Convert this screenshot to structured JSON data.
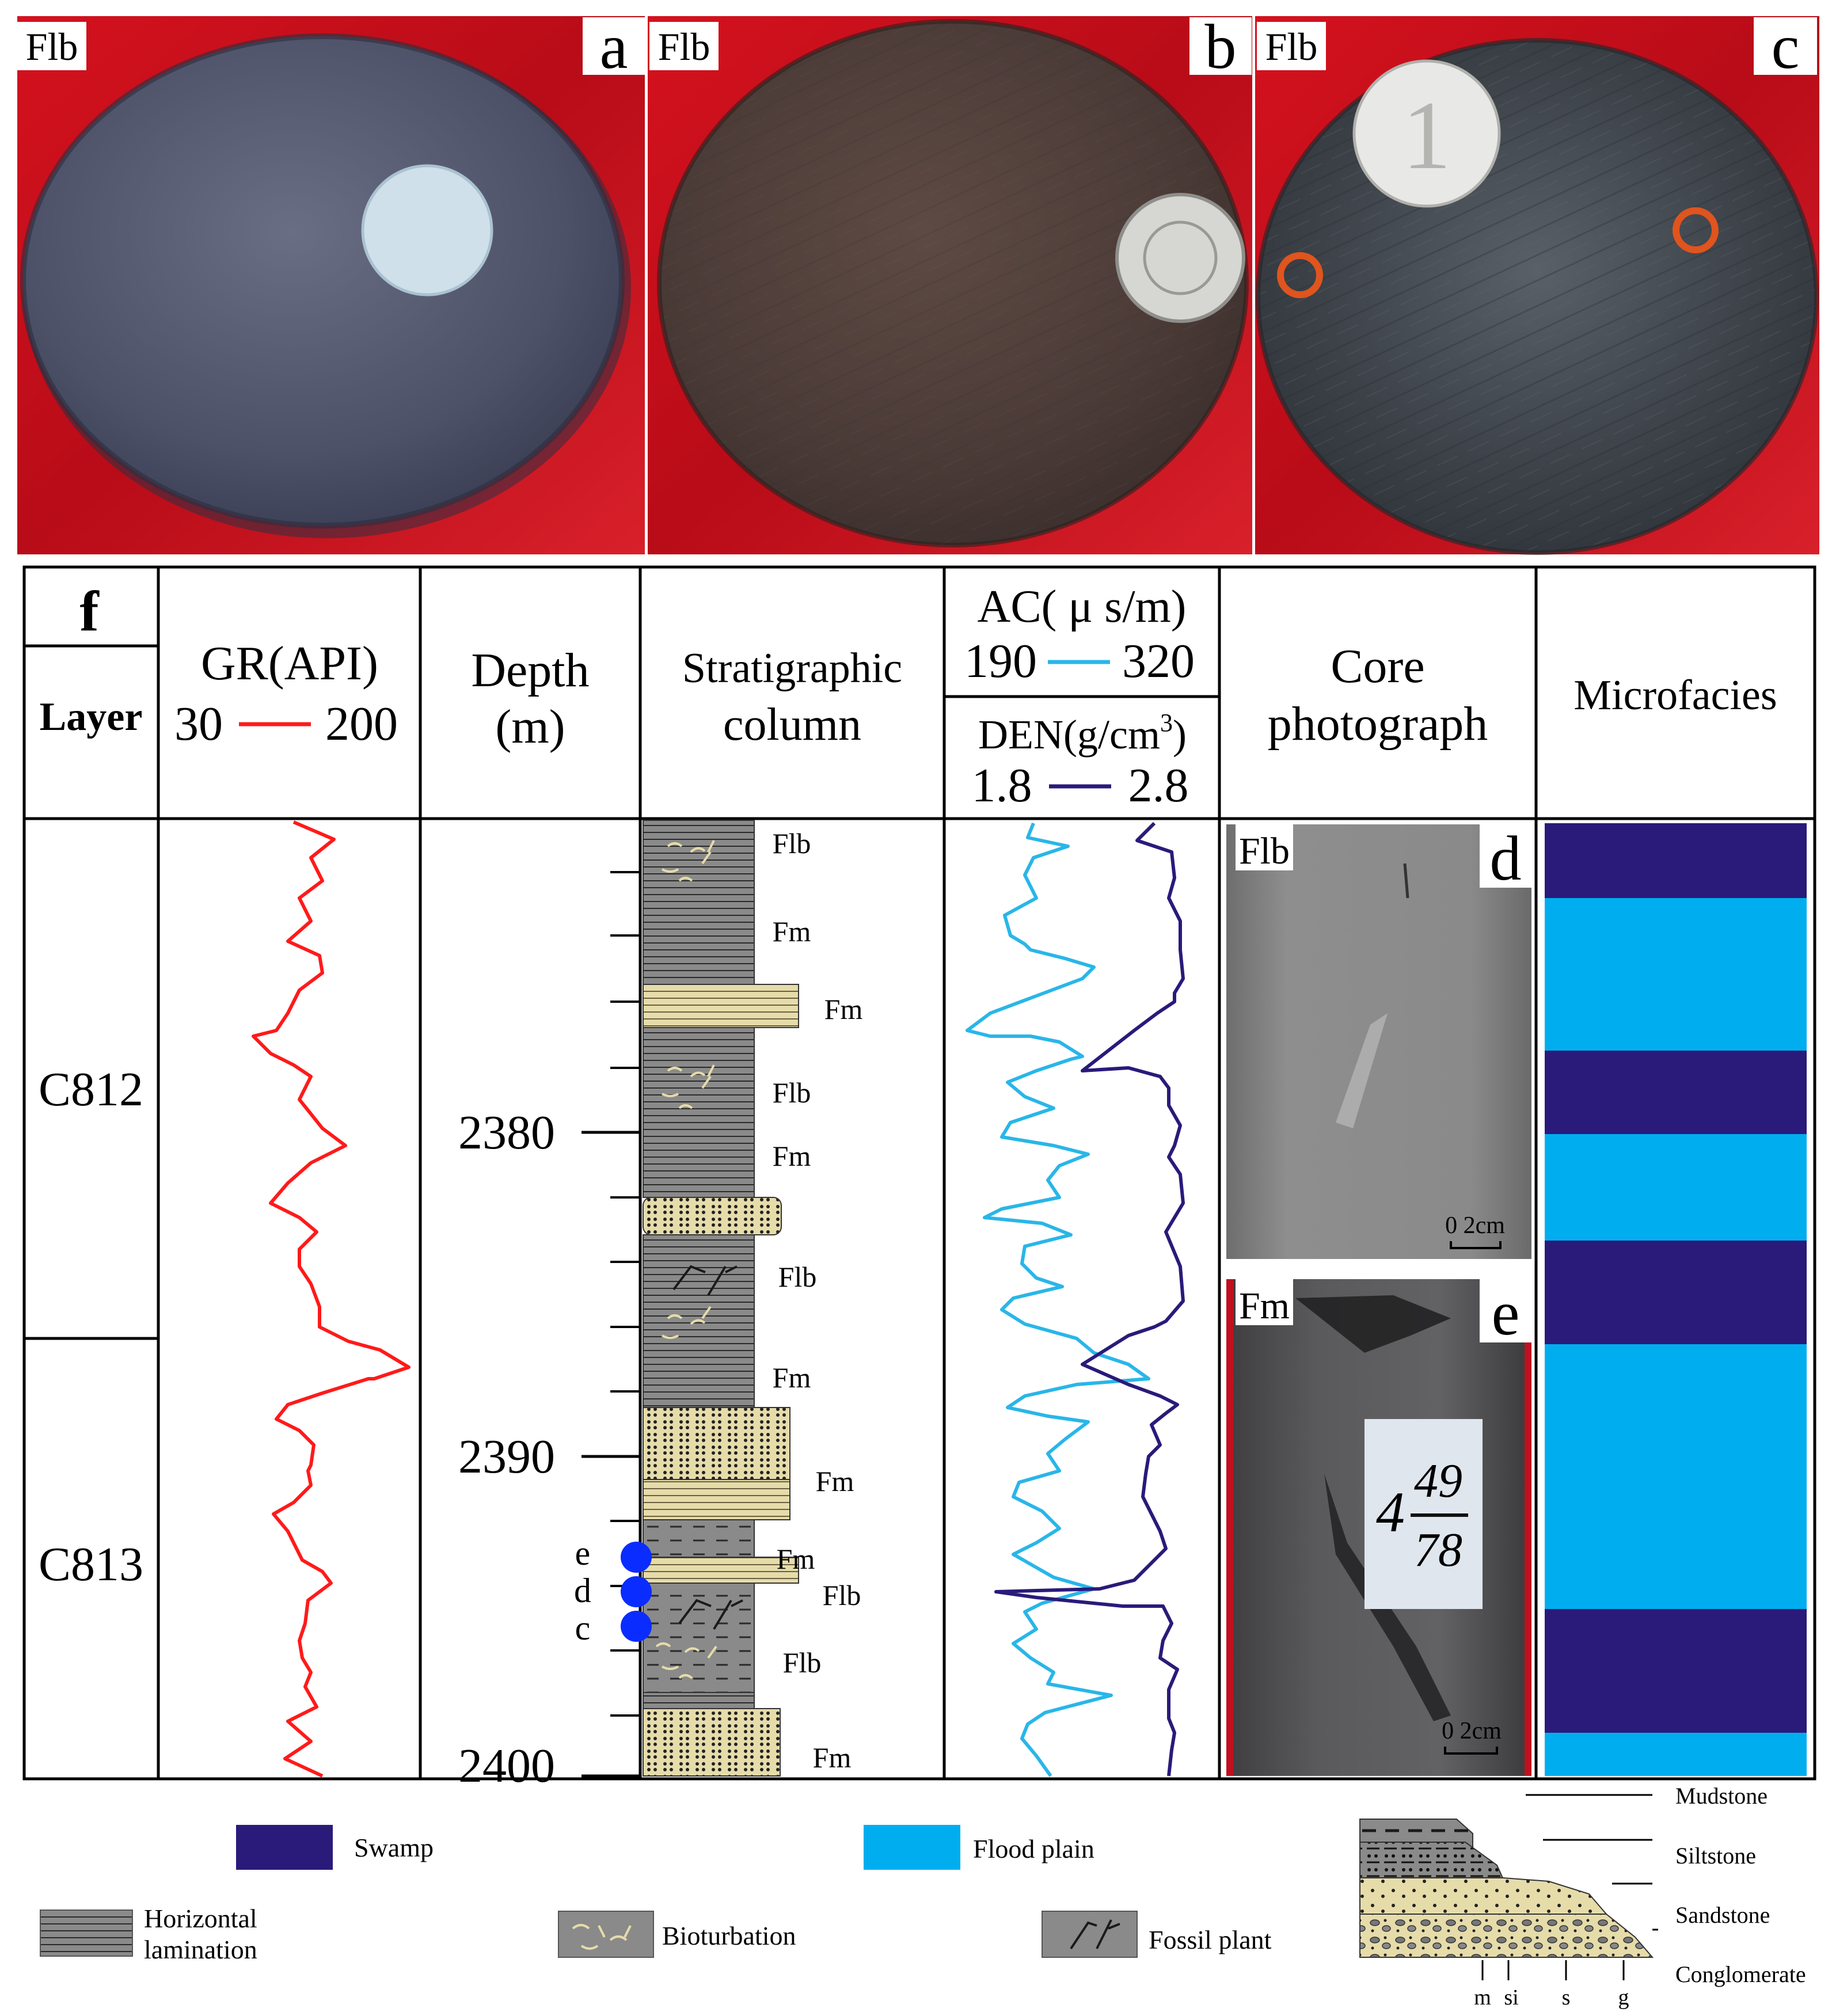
{
  "photos": [
    {
      "label": "Flb",
      "letter": "a"
    },
    {
      "label": "Flb",
      "letter": "b"
    },
    {
      "label": "Flb",
      "letter": "c"
    }
  ],
  "panel_f": {
    "letter": "f",
    "headers": {
      "layer": "Layer",
      "gr": {
        "title": "GR(API)",
        "min": "30",
        "max": "200",
        "color": "#ff1a1a"
      },
      "depth": {
        "line1": "Depth",
        "line2": "(m)"
      },
      "strat": {
        "line1": "Stratigraphic",
        "line2": "column"
      },
      "ac": {
        "title": "AC( μ s/m)",
        "min": "190",
        "max": "320",
        "color": "#29b6e8"
      },
      "den": {
        "title_pre": "DEN(g/cm",
        "title_sup": "3",
        "title_post": ")",
        "min": "1.8",
        "max": "2.8",
        "color": "#2a1a7a"
      },
      "core": {
        "line1": "Core",
        "line2": "photograph"
      },
      "micro": "Microfacies"
    },
    "layers": [
      "C812",
      "C813"
    ],
    "depth_ticks": [
      "2380",
      "2390",
      "2400"
    ],
    "strat_labels": [
      "Flb",
      "Fm",
      "Fm",
      "Flb",
      "Fm",
      "Flb",
      "Fm",
      "Fm",
      "Fm",
      "Flb",
      "Flb",
      "Fm"
    ],
    "sample_points": [
      "e",
      "d",
      "c"
    ],
    "core_photos": [
      {
        "label": "Flb",
        "letter": "d",
        "scale": "0   2cm"
      },
      {
        "label": "Fm",
        "letter": "e",
        "scale": "0   2cm",
        "tag_top": "49",
        "tag_left": "4",
        "tag_bottom": "78"
      }
    ],
    "microfacies": [
      "swamp",
      "flood",
      "swamp",
      "flood",
      "swamp",
      "flood",
      "swamp",
      "flood"
    ]
  },
  "legend": {
    "swamp": {
      "label": "Swamp",
      "color": "#2a1a7a"
    },
    "flood": {
      "label": "Flood plain",
      "color": "#00aeef"
    },
    "horizontal": {
      "line1": "Horizontal",
      "line2": "lamination"
    },
    "bioturbation": "Bioturbation",
    "fossil": "Fossil plant",
    "lithology": [
      "Mudstone",
      "Siltstone",
      "Sandstone",
      "Conglomerate"
    ],
    "grain_scale": [
      "m",
      "si",
      "s",
      "g"
    ]
  }
}
